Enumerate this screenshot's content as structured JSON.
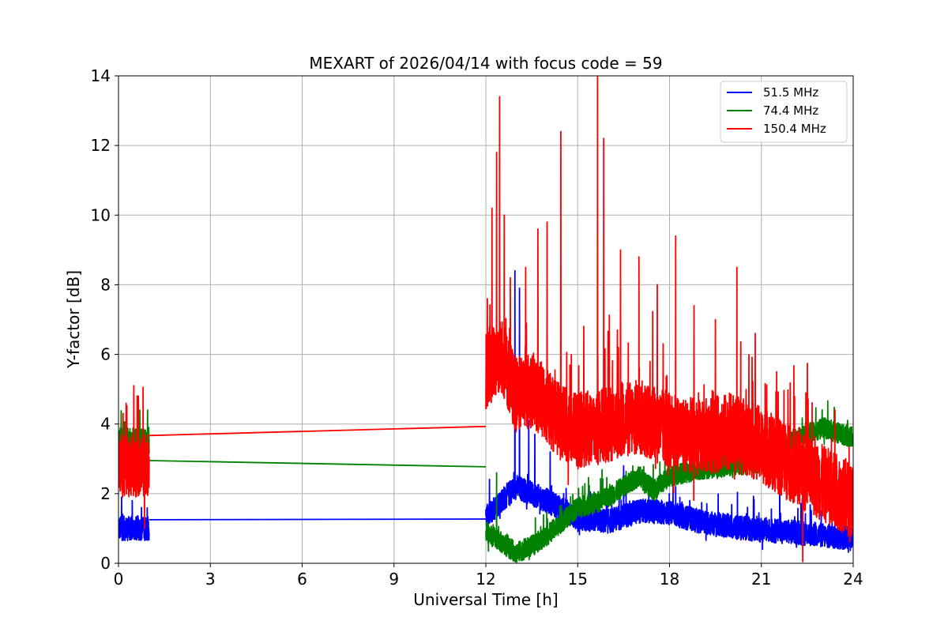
{
  "chart_data": {
    "type": "line",
    "title": "MEXART of 2026/04/14 with focus code = 59",
    "xlabel": "Universal Time [h]",
    "ylabel": "Y-factor [dB]",
    "xlim": [
      0,
      24
    ],
    "ylim": [
      0,
      14
    ],
    "xticks": [
      0,
      3,
      6,
      9,
      12,
      15,
      18,
      21,
      24
    ],
    "yticks": [
      0,
      2,
      4,
      6,
      8,
      10,
      12,
      14
    ],
    "grid": true,
    "legend_position": "top-right",
    "series": [
      {
        "name": "51.5 MHz",
        "color": "#0000ff",
        "segments": [
          {
            "x_start": 0.0,
            "x_end": 1.0,
            "mean": 1.0,
            "noise": 0.35,
            "spikes": [
              [
                0.1,
                1.9
              ],
              [
                0.45,
                1.8
              ],
              [
                0.75,
                1.6
              ]
            ]
          },
          {
            "line": [
              [
                1.0,
                1.25
              ],
              [
                12.0,
                1.27
              ]
            ]
          },
          {
            "keypoints": [
              [
                12.0,
                1.3
              ],
              [
                12.5,
                1.8
              ],
              [
                13.0,
                2.2
              ],
              [
                13.5,
                2.0
              ],
              [
                14.0,
                1.8
              ],
              [
                15.0,
                1.3
              ],
              [
                16.0,
                1.2
              ],
              [
                17.0,
                1.5
              ],
              [
                18.0,
                1.45
              ],
              [
                19.0,
                1.2
              ],
              [
                20.0,
                1.05
              ],
              [
                21.0,
                0.95
              ],
              [
                22.0,
                0.9
              ],
              [
                23.0,
                0.8
              ],
              [
                24.0,
                0.7
              ]
            ],
            "noise": 0.35,
            "spikes": [
              [
                12.95,
                8.4
              ],
              [
                13.1,
                7.9
              ],
              [
                13.4,
                4.1
              ],
              [
                13.6,
                3.7
              ],
              [
                14.1,
                3.2
              ],
              [
                16.5,
                2.8
              ],
              [
                18.2,
                2.2
              ],
              [
                21.6,
                2.8
              ]
            ]
          }
        ]
      },
      {
        "name": "74.4 MHz",
        "color": "#008000",
        "segments": [
          {
            "x_start": 0.0,
            "x_end": 1.0,
            "mean": 3.5,
            "noise": 0.4,
            "spikes": [
              [
                0.7,
                4.4
              ],
              [
                0.95,
                4.4
              ]
            ]
          },
          {
            "line": [
              [
                1.0,
                2.95
              ],
              [
                12.0,
                2.77
              ]
            ]
          },
          {
            "keypoints": [
              [
                12.0,
                0.9
              ],
              [
                12.5,
                0.6
              ],
              [
                13.0,
                0.3
              ],
              [
                13.5,
                0.5
              ],
              [
                14.0,
                0.8
              ],
              [
                14.5,
                1.2
              ],
              [
                15.0,
                1.6
              ],
              [
                15.5,
                1.7
              ],
              [
                16.0,
                1.9
              ],
              [
                16.5,
                2.2
              ],
              [
                17.0,
                2.5
              ],
              [
                17.5,
                2.1
              ],
              [
                18.0,
                2.5
              ],
              [
                19.0,
                2.7
              ],
              [
                20.0,
                2.8
              ],
              [
                21.0,
                2.9
              ],
              [
                22.0,
                3.5
              ],
              [
                23.0,
                3.9
              ],
              [
                24.0,
                3.6
              ]
            ],
            "noise": 0.3,
            "spikes": [
              [
                12.35,
                2.6
              ],
              [
                16.8,
                2.8
              ],
              [
                23.4,
                4.4
              ]
            ]
          }
        ]
      },
      {
        "name": "150.4 MHz",
        "color": "#ff0000",
        "segments": [
          {
            "x_start": 0.0,
            "x_end": 1.0,
            "mean": 2.8,
            "noise": 0.9,
            "spikes": [
              [
                0.5,
                5.1
              ],
              [
                0.25,
                4.6
              ],
              [
                0.65,
                4.8
              ],
              [
                0.85,
                1.0
              ]
            ]
          },
          {
            "line": [
              [
                1.0,
                3.67
              ],
              [
                12.0,
                3.93
              ]
            ]
          },
          {
            "keypoints": [
              [
                12.0,
                5.5
              ],
              [
                12.5,
                6.0
              ],
              [
                13.0,
                4.8
              ],
              [
                13.5,
                5.0
              ],
              [
                14.0,
                4.5
              ],
              [
                14.5,
                4.0
              ],
              [
                15.0,
                3.8
              ],
              [
                16.0,
                4.0
              ],
              [
                17.0,
                4.2
              ],
              [
                18.0,
                3.8
              ],
              [
                19.0,
                3.6
              ],
              [
                20.0,
                3.8
              ],
              [
                21.0,
                3.4
              ],
              [
                22.0,
                2.8
              ],
              [
                23.0,
                2.3
              ],
              [
                24.0,
                1.8
              ]
            ],
            "noise": 1.1,
            "spikes": [
              [
                12.05,
                7.6
              ],
              [
                12.2,
                10.2
              ],
              [
                12.35,
                11.8
              ],
              [
                12.45,
                13.4
              ],
              [
                12.6,
                10.0
              ],
              [
                12.8,
                8.2
              ],
              [
                13.3,
                8.5
              ],
              [
                13.7,
                9.6
              ],
              [
                14.0,
                9.8
              ],
              [
                14.45,
                12.4
              ],
              [
                15.2,
                6.8
              ],
              [
                15.65,
                14.0
              ],
              [
                15.85,
                12.2
              ],
              [
                16.4,
                9.0
              ],
              [
                17.0,
                8.8
              ],
              [
                17.6,
                8.0
              ],
              [
                18.2,
                9.4
              ],
              [
                18.8,
                7.4
              ],
              [
                19.5,
                7.0
              ],
              [
                20.2,
                8.5
              ],
              [
                20.8,
                6.6
              ],
              [
                21.5,
                5.5
              ],
              [
                23.4,
                4.4
              ],
              [
                22.35,
                0.05
              ]
            ]
          }
        ]
      }
    ]
  }
}
